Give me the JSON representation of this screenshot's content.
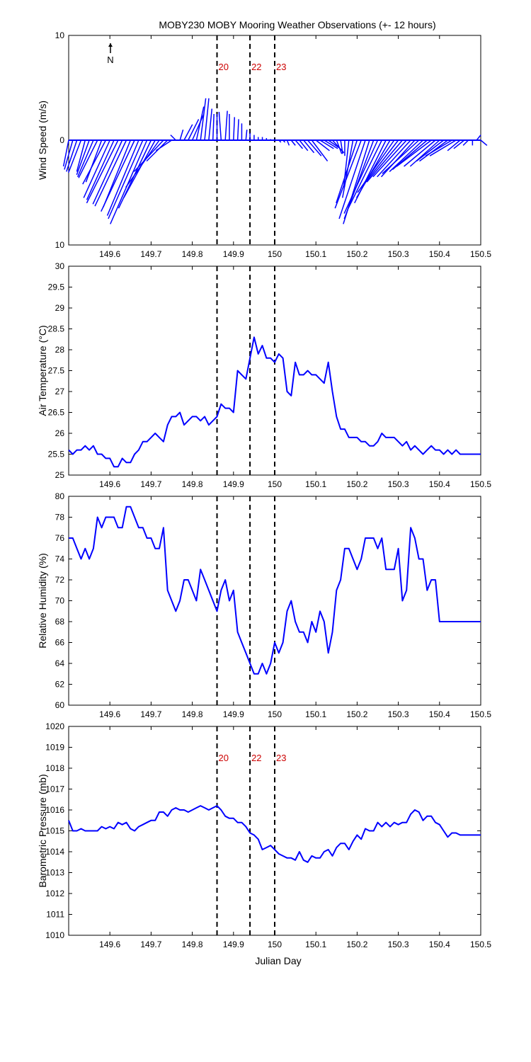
{
  "figure": {
    "title": "MOBY230 MOBY Mooring Weather Observations (+- 12 hours)",
    "xlabel": "Julian Day",
    "north_label": "N",
    "line_color": "#0000ff",
    "marker_color": "#cc0000",
    "axis_color": "#000000"
  },
  "chart_data": [
    {
      "type": "wind-stick",
      "ylabel": "Wind Speed (m/s)",
      "xlim": [
        149.5,
        150.5
      ],
      "ylim": [
        -10,
        10
      ],
      "xticks": [
        149.6,
        149.7,
        149.8,
        149.9,
        150,
        150.1,
        150.2,
        150.3,
        150.4,
        150.5
      ],
      "xtick_labels": [
        "149.6",
        "149.7",
        "149.8",
        "149.9",
        "150",
        "150.1",
        "150.2",
        "150.3",
        "150.4",
        "150.5"
      ],
      "yticks": [
        -10,
        0,
        10
      ],
      "ytick_labels": [
        "10",
        "0",
        "10"
      ],
      "markers": [
        {
          "x": 149.86,
          "label": "20"
        },
        {
          "x": 149.94,
          "label": "22"
        },
        {
          "x": 150.0,
          "label": "23"
        }
      ],
      "x": [
        149.5,
        149.51,
        149.52,
        149.53,
        149.54,
        149.55,
        149.56,
        149.57,
        149.58,
        149.59,
        149.6,
        149.61,
        149.62,
        149.63,
        149.64,
        149.65,
        149.66,
        149.67,
        149.68,
        149.69,
        149.7,
        149.71,
        149.72,
        149.73,
        149.74,
        149.75,
        149.76,
        149.77,
        149.78,
        149.79,
        149.8,
        149.81,
        149.82,
        149.83,
        149.84,
        149.85,
        149.86,
        149.87,
        149.88,
        149.89,
        149.9,
        149.91,
        149.92,
        149.93,
        149.94,
        149.95,
        149.96,
        149.97,
        149.98,
        149.99,
        150.0,
        150.01,
        150.02,
        150.03,
        150.04,
        150.05,
        150.06,
        150.07,
        150.08,
        150.09,
        150.1,
        150.11,
        150.12,
        150.13,
        150.14,
        150.15,
        150.16,
        150.17,
        150.18,
        150.19,
        150.2,
        150.21,
        150.22,
        150.23,
        150.24,
        150.25,
        150.26,
        150.27,
        150.28,
        150.29,
        150.3,
        150.31,
        150.32,
        150.33,
        150.34,
        150.35,
        150.36,
        150.37,
        150.38,
        150.39,
        150.4,
        150.41,
        150.42,
        150.43,
        150.44,
        150.45,
        150.46,
        150.47,
        150.48,
        150.49,
        150.5
      ],
      "u": [
        -0.5,
        -0.8,
        -1.0,
        -1.2,
        -0.8,
        -1.2,
        -1.5,
        -1.8,
        -1.5,
        -2.2,
        -2.5,
        -2.6,
        -3.0,
        -2.8,
        -3.0,
        -2.6,
        -3.2,
        -3.0,
        -3.3,
        -3.5,
        -3.1,
        -3.0,
        -3.2,
        -2.8,
        -2.0,
        -1.5,
        -0.5,
        0.3,
        0.8,
        1.0,
        1.1,
        0.7,
        0.5,
        0.4,
        0.3,
        0.1,
        0.0,
        -0.2,
        0.2,
        0.0,
        0.1,
        0.1,
        0.0,
        0.1,
        0.0,
        0.0,
        0.0,
        0.0,
        0.0,
        0.0,
        0.0,
        0.2,
        0.2,
        0.2,
        0.4,
        0.7,
        0.8,
        1.0,
        1.3,
        1.5,
        1.3,
        1.3,
        1.3,
        1.0,
        1.1,
        0.5,
        0.2,
        0.0,
        -0.5,
        -1.0,
        -2.0,
        -2.5,
        -2.5,
        -2.5,
        -2.8,
        -3.2,
        -3.2,
        -3.0,
        -3.2,
        -3.5,
        -3.5,
        -3.4,
        -3.2,
        -3.2,
        -3.2,
        -3.5,
        -3.2,
        -3.3,
        -3.3,
        -3.0,
        -2.8,
        -2.6,
        -2.7,
        -2.5,
        -2.5,
        -1.2,
        -1.0,
        -0.5,
        0.0,
        0.4,
        0.6
      ],
      "v": [
        -2.5,
        -2.8,
        -3.0,
        -3.1,
        -3.0,
        -3.3,
        -3.5,
        -3.6,
        -4.0,
        -4.2,
        -5.5,
        -5.7,
        -6.0,
        -6.1,
        -6.3,
        -6.4,
        -6.8,
        -7.2,
        -7.5,
        -8.0,
        -6.5,
        -5.5,
        -4.5,
        -3.0,
        -2.0,
        -1.0,
        0.5,
        1.0,
        1.5,
        2.0,
        2.5,
        3.2,
        4.0,
        4.0,
        3.0,
        2.5,
        2.5,
        2.7,
        2.8,
        2.5,
        2.2,
        2.0,
        1.6,
        1.0,
        0.7,
        0.5,
        0.3,
        0.3,
        0.2,
        0.1,
        0.1,
        -0.2,
        -0.2,
        -0.5,
        -0.5,
        -0.8,
        -1.0,
        -1.2,
        -1.5,
        -2.0,
        -1.0,
        -0.8,
        -0.8,
        -0.7,
        -1.2,
        -1.3,
        -1.3,
        -1.5,
        -4.5,
        -5.5,
        -6.0,
        -6.5,
        -7.5,
        -8.0,
        -7.5,
        -7.0,
        -6.5,
        -6.0,
        -5.5,
        -5.0,
        -4.5,
        -4.0,
        -3.5,
        -3.5,
        -3.5,
        -3.2,
        -3.0,
        -2.8,
        -2.5,
        -2.5,
        -2.5,
        -2.0,
        -2.0,
        -1.5,
        -1.5,
        -1.0,
        -0.8,
        -0.5,
        -0.5,
        0.5,
        -0.5
      ]
    },
    {
      "type": "line",
      "ylabel": "Air Temperature (°C)",
      "xlim": [
        149.5,
        150.5
      ],
      "ylim": [
        25,
        30
      ],
      "xticks": [
        149.6,
        149.7,
        149.8,
        149.9,
        150,
        150.1,
        150.2,
        150.3,
        150.4,
        150.5
      ],
      "xtick_labels": [
        "149.6",
        "149.7",
        "149.8",
        "149.9",
        "150",
        "150.1",
        "150.2",
        "150.3",
        "150.4",
        "150.5"
      ],
      "yticks": [
        25,
        25.5,
        26,
        26.5,
        27,
        27.5,
        28,
        28.5,
        29,
        29.5,
        30
      ],
      "ytick_labels": [
        "25",
        "25.5",
        "26",
        "26.5",
        "27",
        "27.5",
        "28",
        "28.5",
        "29",
        "29.5",
        "30"
      ],
      "markers": [
        {
          "x": 149.86,
          "label": ""
        },
        {
          "x": 149.94,
          "label": ""
        },
        {
          "x": 150.0,
          "label": ""
        }
      ],
      "x": [
        149.5,
        149.51,
        149.52,
        149.53,
        149.54,
        149.55,
        149.56,
        149.57,
        149.58,
        149.59,
        149.6,
        149.61,
        149.62,
        149.63,
        149.64,
        149.65,
        149.66,
        149.67,
        149.68,
        149.69,
        149.7,
        149.71,
        149.72,
        149.73,
        149.74,
        149.75,
        149.76,
        149.77,
        149.78,
        149.79,
        149.8,
        149.81,
        149.82,
        149.83,
        149.84,
        149.85,
        149.86,
        149.87,
        149.88,
        149.89,
        149.9,
        149.91,
        149.92,
        149.93,
        149.94,
        149.95,
        149.96,
        149.97,
        149.98,
        149.99,
        150.0,
        150.01,
        150.02,
        150.03,
        150.04,
        150.05,
        150.06,
        150.07,
        150.08,
        150.09,
        150.1,
        150.11,
        150.12,
        150.13,
        150.14,
        150.15,
        150.16,
        150.17,
        150.18,
        150.19,
        150.2,
        150.21,
        150.22,
        150.23,
        150.24,
        150.25,
        150.26,
        150.27,
        150.28,
        150.29,
        150.3,
        150.31,
        150.32,
        150.33,
        150.34,
        150.35,
        150.36,
        150.37,
        150.38,
        150.39,
        150.4,
        150.41,
        150.42,
        150.43,
        150.44,
        150.45,
        150.46,
        150.47,
        150.48,
        150.49,
        150.5
      ],
      "y": [
        25.6,
        25.5,
        25.6,
        25.6,
        25.7,
        25.6,
        25.7,
        25.5,
        25.5,
        25.4,
        25.4,
        25.2,
        25.2,
        25.4,
        25.3,
        25.3,
        25.5,
        25.6,
        25.8,
        25.8,
        25.9,
        26.0,
        25.9,
        25.8,
        26.2,
        26.4,
        26.4,
        26.5,
        26.2,
        26.3,
        26.4,
        26.4,
        26.3,
        26.4,
        26.2,
        26.3,
        26.4,
        26.7,
        26.6,
        26.6,
        26.5,
        27.5,
        27.4,
        27.3,
        27.8,
        28.3,
        27.9,
        28.1,
        27.8,
        27.8,
        27.7,
        27.9,
        27.8,
        27.0,
        26.9,
        27.7,
        27.4,
        27.4,
        27.5,
        27.4,
        27.4,
        27.3,
        27.2,
        27.7,
        27.0,
        26.4,
        26.1,
        26.1,
        25.9,
        25.9,
        25.9,
        25.8,
        25.8,
        25.7,
        25.7,
        25.8,
        26.0,
        25.9,
        25.9,
        25.9,
        25.8,
        25.7,
        25.8,
        25.6,
        25.7,
        25.6,
        25.5,
        25.6,
        25.7,
        25.6,
        25.6,
        25.5,
        25.6,
        25.5,
        25.6,
        25.5,
        25.5,
        25.5,
        25.5,
        25.5,
        25.5
      ]
    },
    {
      "type": "line",
      "ylabel": "Relative Humidity (%)",
      "xlim": [
        149.5,
        150.5
      ],
      "ylim": [
        60,
        80
      ],
      "xticks": [
        149.6,
        149.7,
        149.8,
        149.9,
        150,
        150.1,
        150.2,
        150.3,
        150.4,
        150.5
      ],
      "xtick_labels": [
        "149.6",
        "149.7",
        "149.8",
        "149.9",
        "150",
        "150.1",
        "150.2",
        "150.3",
        "150.4",
        "150.5"
      ],
      "yticks": [
        60,
        62,
        64,
        66,
        68,
        70,
        72,
        74,
        76,
        78,
        80
      ],
      "ytick_labels": [
        "60",
        "62",
        "64",
        "66",
        "68",
        "70",
        "72",
        "74",
        "76",
        "78",
        "80"
      ],
      "markers": [
        {
          "x": 149.86,
          "label": ""
        },
        {
          "x": 149.94,
          "label": ""
        },
        {
          "x": 150.0,
          "label": ""
        }
      ],
      "x": [
        149.5,
        149.51,
        149.52,
        149.53,
        149.54,
        149.55,
        149.56,
        149.57,
        149.58,
        149.59,
        149.6,
        149.61,
        149.62,
        149.63,
        149.64,
        149.65,
        149.66,
        149.67,
        149.68,
        149.69,
        149.7,
        149.71,
        149.72,
        149.73,
        149.74,
        149.75,
        149.76,
        149.77,
        149.78,
        149.79,
        149.8,
        149.81,
        149.82,
        149.83,
        149.84,
        149.85,
        149.86,
        149.87,
        149.88,
        149.89,
        149.9,
        149.91,
        149.92,
        149.93,
        149.94,
        149.95,
        149.96,
        149.97,
        149.98,
        149.99,
        150.0,
        150.01,
        150.02,
        150.03,
        150.04,
        150.05,
        150.06,
        150.07,
        150.08,
        150.09,
        150.1,
        150.11,
        150.12,
        150.13,
        150.14,
        150.15,
        150.16,
        150.17,
        150.18,
        150.19,
        150.2,
        150.21,
        150.22,
        150.23,
        150.24,
        150.25,
        150.26,
        150.27,
        150.28,
        150.29,
        150.3,
        150.31,
        150.32,
        150.33,
        150.34,
        150.35,
        150.36,
        150.37,
        150.38,
        150.39,
        150.4,
        150.41,
        150.42,
        150.43,
        150.44,
        150.45,
        150.46,
        150.47,
        150.48,
        150.49,
        150.5
      ],
      "y": [
        76,
        76,
        75,
        74,
        75,
        74,
        75,
        78,
        77,
        78,
        78,
        78,
        77,
        77,
        79,
        79,
        78,
        77,
        77,
        76,
        76,
        75,
        75,
        77,
        71,
        70,
        69,
        70,
        72,
        72,
        71,
        70,
        73,
        72,
        71,
        70,
        69,
        71,
        72,
        70,
        71,
        67,
        66,
        65,
        64,
        63,
        63,
        64,
        63,
        64,
        66,
        65,
        66,
        69,
        70,
        68,
        67,
        67,
        66,
        68,
        67,
        69,
        68,
        65,
        67,
        71,
        72,
        75,
        75,
        74,
        73,
        74,
        76,
        76,
        76,
        75,
        76,
        73,
        73,
        73,
        75,
        70,
        71,
        77,
        76,
        74,
        74,
        71,
        72,
        72,
        68,
        68,
        68,
        68,
        68,
        68,
        68,
        68,
        68,
        68,
        68
      ]
    },
    {
      "type": "line",
      "ylabel": "Barometric Pressure (mb)",
      "xlabel": "Julian Day",
      "xlim": [
        149.5,
        150.5
      ],
      "ylim": [
        1010,
        1020
      ],
      "xticks": [
        149.6,
        149.7,
        149.8,
        149.9,
        150,
        150.1,
        150.2,
        150.3,
        150.4,
        150.5
      ],
      "xtick_labels": [
        "149.6",
        "149.7",
        "149.8",
        "149.9",
        "150",
        "150.1",
        "150.2",
        "150.3",
        "150.4",
        "150.5"
      ],
      "yticks": [
        1010,
        1011,
        1012,
        1013,
        1014,
        1015,
        1016,
        1017,
        1018,
        1019,
        1020
      ],
      "ytick_labels": [
        "1010",
        "1011",
        "1012",
        "1013",
        "1014",
        "1015",
        "1016",
        "1017",
        "1018",
        "1019",
        "1020"
      ],
      "markers": [
        {
          "x": 149.86,
          "label": "20"
        },
        {
          "x": 149.94,
          "label": "22"
        },
        {
          "x": 150.0,
          "label": "23"
        }
      ],
      "x": [
        149.5,
        149.51,
        149.52,
        149.53,
        149.54,
        149.55,
        149.56,
        149.57,
        149.58,
        149.59,
        149.6,
        149.61,
        149.62,
        149.63,
        149.64,
        149.65,
        149.66,
        149.67,
        149.68,
        149.69,
        149.7,
        149.71,
        149.72,
        149.73,
        149.74,
        149.75,
        149.76,
        149.77,
        149.78,
        149.79,
        149.8,
        149.81,
        149.82,
        149.83,
        149.84,
        149.85,
        149.86,
        149.87,
        149.88,
        149.89,
        149.9,
        149.91,
        149.92,
        149.93,
        149.94,
        149.95,
        149.96,
        149.97,
        149.98,
        149.99,
        150.0,
        150.01,
        150.02,
        150.03,
        150.04,
        150.05,
        150.06,
        150.07,
        150.08,
        150.09,
        150.1,
        150.11,
        150.12,
        150.13,
        150.14,
        150.15,
        150.16,
        150.17,
        150.18,
        150.19,
        150.2,
        150.21,
        150.22,
        150.23,
        150.24,
        150.25,
        150.26,
        150.27,
        150.28,
        150.29,
        150.3,
        150.31,
        150.32,
        150.33,
        150.34,
        150.35,
        150.36,
        150.37,
        150.38,
        150.39,
        150.4,
        150.41,
        150.42,
        150.43,
        150.44,
        150.45,
        150.46,
        150.47,
        150.48,
        150.49,
        150.5
      ],
      "y": [
        1015.5,
        1015.0,
        1015.0,
        1015.1,
        1015.0,
        1015.0,
        1015.0,
        1015.0,
        1015.2,
        1015.1,
        1015.2,
        1015.1,
        1015.4,
        1015.3,
        1015.4,
        1015.1,
        1015.0,
        1015.2,
        1015.3,
        1015.4,
        1015.5,
        1015.5,
        1015.9,
        1015.9,
        1015.7,
        1016.0,
        1016.1,
        1016.0,
        1016.0,
        1015.9,
        1016.0,
        1016.1,
        1016.2,
        1016.1,
        1016.0,
        1016.1,
        1016.2,
        1016.0,
        1015.7,
        1015.6,
        1015.6,
        1015.4,
        1015.4,
        1015.2,
        1014.9,
        1014.8,
        1014.6,
        1014.1,
        1014.2,
        1014.3,
        1014.1,
        1013.9,
        1013.8,
        1013.7,
        1013.7,
        1013.6,
        1014.0,
        1013.6,
        1013.5,
        1013.8,
        1013.7,
        1013.7,
        1014.0,
        1014.1,
        1013.8,
        1014.2,
        1014.4,
        1014.4,
        1014.1,
        1014.5,
        1014.8,
        1014.6,
        1015.1,
        1015.0,
        1015.0,
        1015.4,
        1015.2,
        1015.4,
        1015.2,
        1015.4,
        1015.3,
        1015.4,
        1015.4,
        1015.8,
        1016.0,
        1015.9,
        1015.5,
        1015.7,
        1015.7,
        1015.4,
        1015.3,
        1015.0,
        1014.7,
        1014.9,
        1014.9,
        1014.8,
        1014.8,
        1014.8,
        1014.8,
        1014.8,
        1014.8
      ]
    }
  ]
}
